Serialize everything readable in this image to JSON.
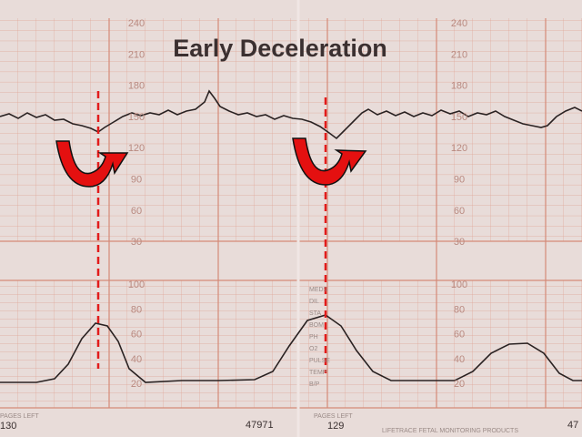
{
  "title": "Early Deceleration",
  "fhr_scale": [
    240,
    210,
    180,
    150,
    120,
    90,
    60,
    30
  ],
  "uc_scale": [
    100,
    80,
    60,
    40,
    20
  ],
  "chart_notes": [
    "MEDS",
    "DIL",
    "STA",
    "BOM",
    "PH",
    "O2",
    "PULSE",
    "TEMP",
    "B/P"
  ],
  "footer": {
    "pages_left_1": "PAGES LEFT",
    "page_1": "130",
    "serial": "47971",
    "pages_left_2": "PAGES LEFT",
    "page_2": "129",
    "brand": "LIFETRACE FETAL MONITORING PRODUCTS",
    "serial_2": "47"
  }
}
